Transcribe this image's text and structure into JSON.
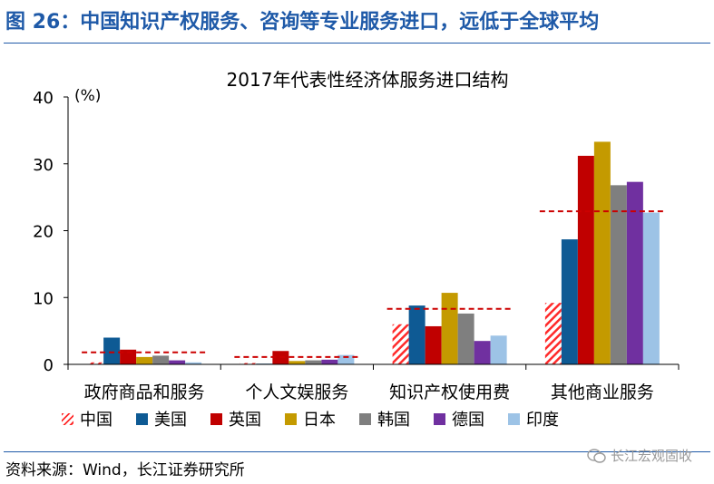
{
  "figure": {
    "title": "图 26：中国知识产权服务、咨询等专业服务进口，远低于全球平均",
    "source": "资料来源：Wind，长江证券研究所",
    "watermark": "长江宏观固收"
  },
  "colors": {
    "title": "#1f5aa8",
    "average_line": "#cc0000"
  },
  "chart_data": {
    "type": "bar",
    "title": "2017年代表性经济体服务进口结构",
    "ylabel": "(%)",
    "xlabel": "",
    "ylim": [
      0,
      40
    ],
    "yticks": [
      0,
      10,
      20,
      30,
      40
    ],
    "categories": [
      "政府商品和服务",
      "个人文娱服务",
      "知识产权使用费",
      "其他商业服务"
    ],
    "series": [
      {
        "name": "中国",
        "color": "#ff2a2a",
        "pattern": "hatch",
        "values": [
          0.3,
          0.2,
          6.0,
          9.2
        ]
      },
      {
        "name": "美国",
        "color": "#0e5a94",
        "values": [
          4.0,
          0.1,
          8.8,
          18.7
        ]
      },
      {
        "name": "英国",
        "color": "#c00000",
        "values": [
          2.2,
          2.0,
          5.7,
          31.2
        ]
      },
      {
        "name": "日本",
        "color": "#c49a00",
        "values": [
          1.1,
          0.5,
          10.7,
          33.3
        ]
      },
      {
        "name": "韩国",
        "color": "#7f7f7f",
        "values": [
          1.3,
          0.6,
          7.6,
          26.8
        ]
      },
      {
        "name": "德国",
        "color": "#7030a0",
        "values": [
          0.6,
          0.7,
          3.5,
          27.3
        ]
      },
      {
        "name": "印度",
        "color": "#9dc3e6",
        "values": [
          0.3,
          1.4,
          4.3,
          22.7
        ]
      }
    ],
    "averages": [
      1.8,
      1.1,
      8.3,
      22.9
    ],
    "average_style": "red dashed line"
  }
}
